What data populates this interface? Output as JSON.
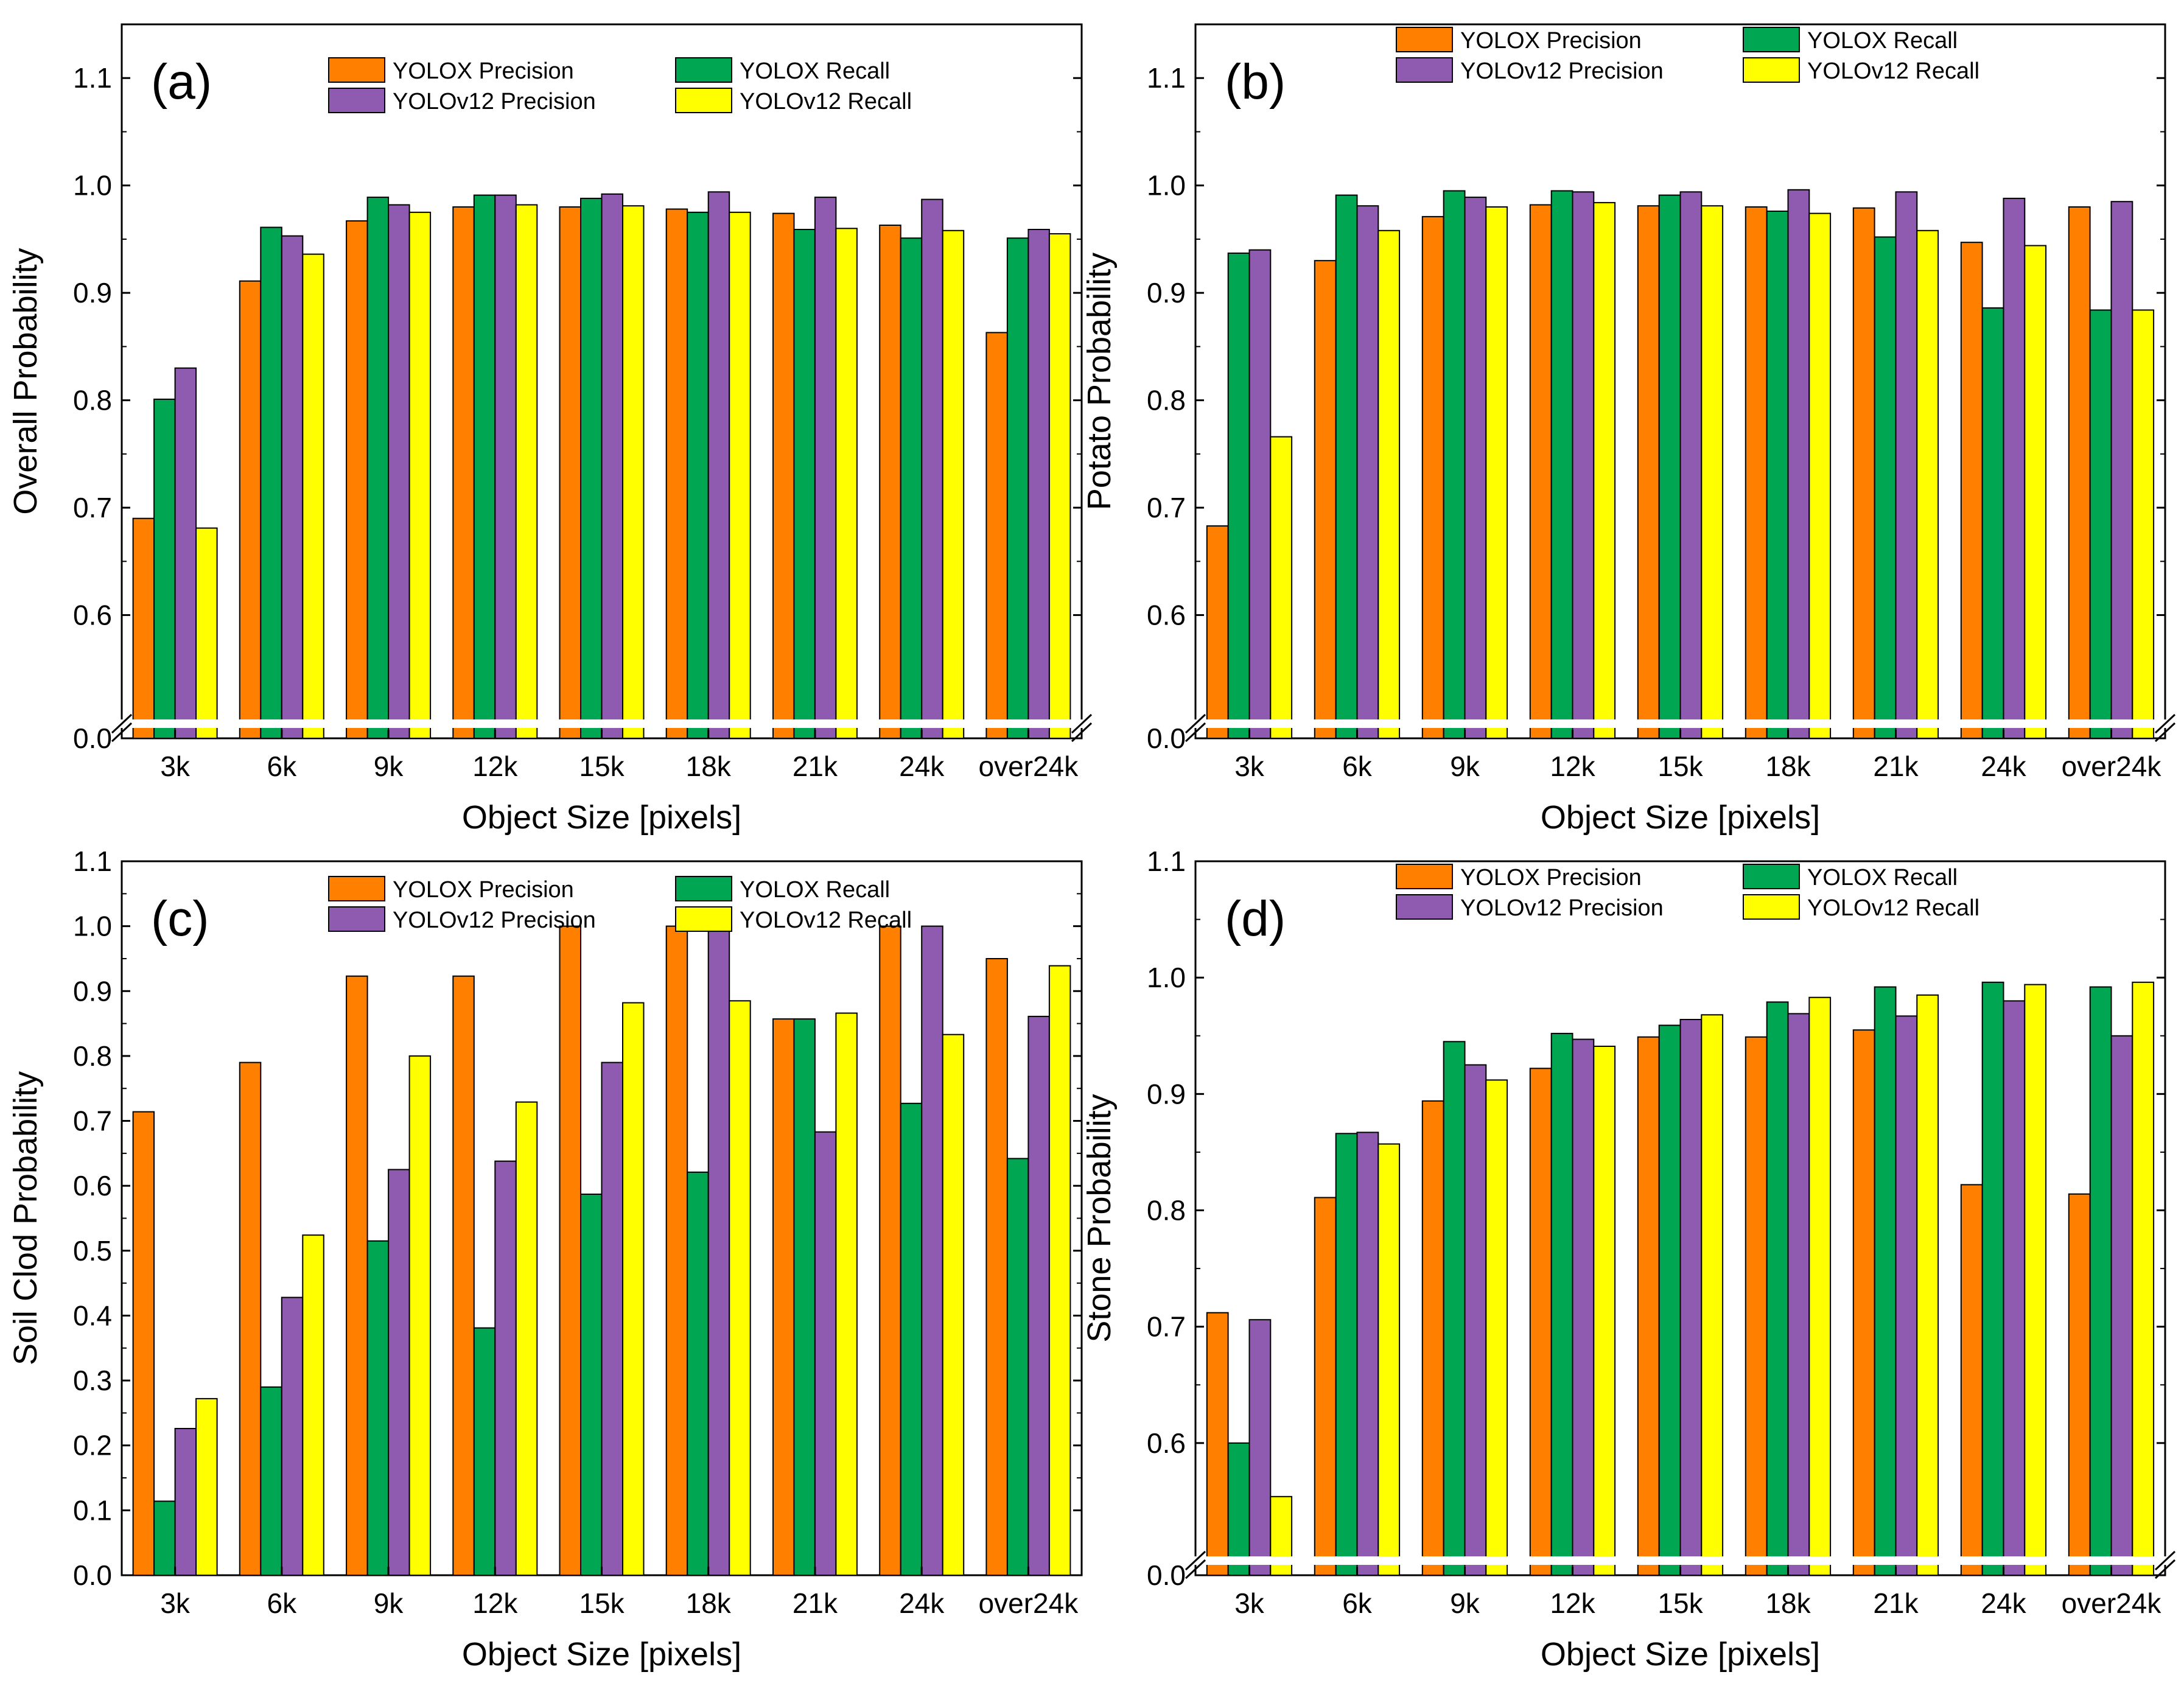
{
  "figure": {
    "xlabel": "Object Size [pixels]",
    "legend": [
      {
        "name": "YOLOX Precision",
        "color": "#FF7F00"
      },
      {
        "name": "YOLOX Recall",
        "color": "#00A651"
      },
      {
        "name": "YOLOv12 Precision",
        "color": "#8E5BB1"
      },
      {
        "name": "YOLOv12 Recall",
        "color": "#FFFF00"
      }
    ]
  },
  "chart_data": [
    {
      "panel_label": "(a)",
      "type": "bar",
      "title": "",
      "xlabel": "Object Size [pixels]",
      "ylabel": "Overall Probability",
      "ylim": [
        0.5,
        1.15
      ],
      "axis_break": true,
      "yticks": [
        "0.0",
        "0.6",
        "0.7",
        "0.8",
        "0.9",
        "1.0",
        "1.1"
      ],
      "categories": [
        "3k",
        "6k",
        "9k",
        "12k",
        "15k",
        "18k",
        "21k",
        "24k",
        "over24k"
      ],
      "series": [
        {
          "name": "YOLOX Precision",
          "values": [
            0.69,
            0.911,
            0.967,
            0.98,
            0.98,
            0.978,
            0.974,
            0.963,
            0.863
          ]
        },
        {
          "name": "YOLOX Recall",
          "values": [
            0.801,
            0.961,
            0.989,
            0.991,
            0.988,
            0.975,
            0.959,
            0.951,
            0.951
          ]
        },
        {
          "name": "YOLOv12 Precision",
          "values": [
            0.83,
            0.953,
            0.982,
            0.991,
            0.992,
            0.994,
            0.989,
            0.987,
            0.959
          ]
        },
        {
          "name": "YOLOv12 Recall",
          "values": [
            0.681,
            0.936,
            0.975,
            0.982,
            0.981,
            0.975,
            0.96,
            0.958,
            0.955
          ]
        }
      ],
      "legend_position": "top-center"
    },
    {
      "panel_label": "(b)",
      "type": "bar",
      "title": "",
      "xlabel": "Object Size [pixels]",
      "ylabel": "Potato Probability",
      "ylim": [
        0.5,
        1.15
      ],
      "axis_break": true,
      "yticks": [
        "0.0",
        "0.6",
        "0.7",
        "0.8",
        "0.9",
        "1.0",
        "1.1"
      ],
      "categories": [
        "3k",
        "6k",
        "9k",
        "12k",
        "15k",
        "18k",
        "21k",
        "24k",
        "over24k"
      ],
      "series": [
        {
          "name": "YOLOX Precision",
          "values": [
            0.683,
            0.93,
            0.971,
            0.982,
            0.981,
            0.98,
            0.979,
            0.947,
            0.98
          ]
        },
        {
          "name": "YOLOX Recall",
          "values": [
            0.937,
            0.991,
            0.995,
            0.995,
            0.991,
            0.976,
            0.952,
            0.886,
            0.884
          ]
        },
        {
          "name": "YOLOv12 Precision",
          "values": [
            0.94,
            0.981,
            0.989,
            0.994,
            0.994,
            0.996,
            0.994,
            0.988,
            0.985
          ]
        },
        {
          "name": "YOLOv12 Recall",
          "values": [
            0.766,
            0.958,
            0.98,
            0.984,
            0.981,
            0.974,
            0.958,
            0.944,
            0.884
          ]
        }
      ],
      "legend_position": "top-center"
    },
    {
      "panel_label": "(c)",
      "type": "bar",
      "title": "",
      "xlabel": "Object Size [pixels]",
      "ylabel": "Soil Clod Probability",
      "ylim": [
        0,
        1.1
      ],
      "axis_break": false,
      "yticks": [
        "0.0",
        "0.1",
        "0.2",
        "0.3",
        "0.4",
        "0.5",
        "0.6",
        "0.7",
        "0.8",
        "0.9",
        "1.0",
        "1.1"
      ],
      "categories": [
        "3k",
        "6k",
        "9k",
        "12k",
        "15k",
        "18k",
        "21k",
        "24k",
        "over24k"
      ],
      "series": [
        {
          "name": "YOLOX Precision",
          "values": [
            0.714,
            0.79,
            0.923,
            0.923,
            1.0,
            1.0,
            0.857,
            1.0,
            0.95
          ]
        },
        {
          "name": "YOLOX Recall",
          "values": [
            0.114,
            0.29,
            0.515,
            0.381,
            0.587,
            0.621,
            0.857,
            0.727,
            0.642
          ]
        },
        {
          "name": "YOLOv12 Precision",
          "values": [
            0.226,
            0.428,
            0.625,
            0.638,
            0.79,
            1.0,
            0.683,
            1.0,
            0.861
          ]
        },
        {
          "name": "YOLOv12 Recall",
          "values": [
            0.272,
            0.524,
            0.8,
            0.729,
            0.882,
            0.885,
            0.866,
            0.833,
            0.939
          ]
        }
      ],
      "legend_position": "top-center"
    },
    {
      "panel_label": "(d)",
      "type": "bar",
      "title": "",
      "xlabel": "Object Size [pixels]",
      "ylabel": "Stone Probability",
      "ylim": [
        0.5,
        1.1
      ],
      "axis_break": true,
      "yticks": [
        "0.0",
        "0.6",
        "0.7",
        "0.8",
        "0.9",
        "1.0",
        "1.1"
      ],
      "categories": [
        "3k",
        "6k",
        "9k",
        "12k",
        "15k",
        "18k",
        "21k",
        "24k",
        "over24k"
      ],
      "series": [
        {
          "name": "YOLOX Precision",
          "values": [
            0.712,
            0.811,
            0.894,
            0.922,
            0.949,
            0.949,
            0.955,
            0.822,
            0.814
          ]
        },
        {
          "name": "YOLOX Recall",
          "values": [
            0.6,
            0.866,
            0.945,
            0.952,
            0.959,
            0.979,
            0.992,
            0.996,
            0.992
          ]
        },
        {
          "name": "YOLOv12 Precision",
          "values": [
            0.706,
            0.867,
            0.925,
            0.947,
            0.964,
            0.969,
            0.967,
            0.98,
            0.95
          ]
        },
        {
          "name": "YOLOv12 Recall",
          "values": [
            0.554,
            0.857,
            0.912,
            0.941,
            0.968,
            0.983,
            0.985,
            0.994,
            0.996
          ]
        }
      ],
      "legend_position": "top-center"
    }
  ]
}
